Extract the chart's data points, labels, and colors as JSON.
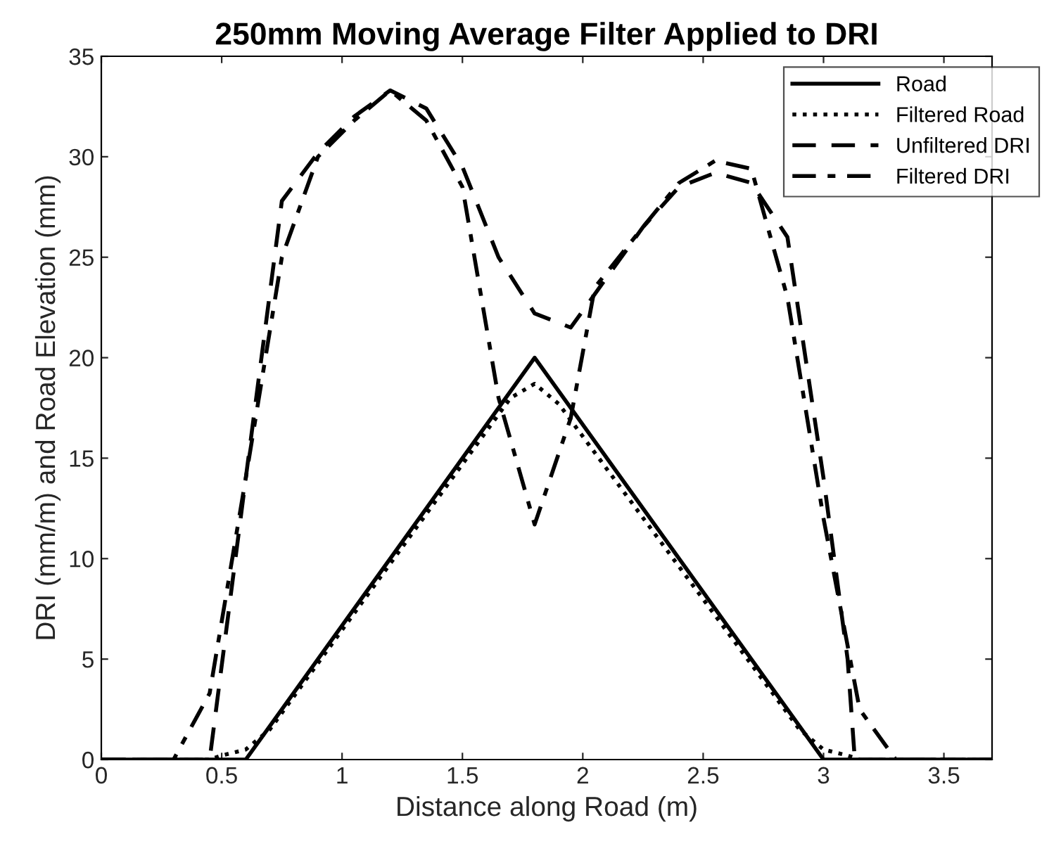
{
  "chart_data": {
    "type": "line",
    "title": "250mm Moving Average Filter Applied to DRI",
    "xlabel": "Distance along Road (m)",
    "ylabel": "DRI (mm/m) and Road Elevation (mm)",
    "xlim": [
      0,
      3.7
    ],
    "ylim": [
      0,
      35
    ],
    "xticks": [
      0,
      0.5,
      1,
      1.5,
      2,
      2.5,
      3,
      3.5
    ],
    "yticks": [
      0,
      5,
      10,
      15,
      20,
      25,
      30,
      35
    ],
    "grid": false,
    "legend": "top right",
    "series": [
      {
        "name": "Road",
        "color": "#000000",
        "line_style": "solid",
        "x": [
          0,
          0.6,
          1.8,
          3.0,
          3.7
        ],
        "values": [
          0,
          0,
          20,
          0,
          0
        ]
      },
      {
        "name": "Filtered Road",
        "color": "#000000",
        "line_style": "dotted",
        "x": [
          0,
          0.45,
          0.5,
          0.6,
          0.7,
          1.7,
          1.8,
          1.9,
          2.9,
          3.0,
          3.1,
          3.15,
          3.7
        ],
        "values": [
          0,
          0,
          0.2,
          0.5,
          1.5,
          18,
          18.7,
          17.7,
          1.5,
          0.5,
          0.2,
          0,
          0
        ]
      },
      {
        "name": "Unfiltered DRI",
        "color": "#000000",
        "line_style": "dashed",
        "x": [
          0,
          0.45,
          0.6,
          0.75,
          0.9,
          1.05,
          1.2,
          1.35,
          1.5,
          1.65,
          1.8,
          1.95,
          2.1,
          2.25,
          2.4,
          2.55,
          2.7,
          2.85,
          3.0,
          3.1,
          3.13,
          3.7
        ],
        "values": [
          0,
          0,
          14,
          27.8,
          30.2,
          32,
          33.3,
          32.4,
          29.5,
          25,
          22.2,
          21.5,
          24,
          26.5,
          28.5,
          29.2,
          28.7,
          26,
          14,
          5,
          0,
          0
        ]
      },
      {
        "name": "Filtered DRI",
        "color": "#000000",
        "line_style": "dashdot",
        "x": [
          0,
          0.3,
          0.45,
          0.6,
          0.75,
          0.9,
          1.05,
          1.2,
          1.35,
          1.5,
          1.65,
          1.8,
          1.95,
          2.05,
          2.25,
          2.4,
          2.55,
          2.7,
          2.85,
          3.0,
          3.15,
          3.3,
          3.7
        ],
        "values": [
          0,
          0,
          3.3,
          14,
          25,
          30,
          31.8,
          33.3,
          31.8,
          28.5,
          18,
          11.7,
          17,
          23.5,
          26.5,
          28.7,
          29.8,
          29.4,
          23,
          12,
          2.5,
          0,
          0
        ]
      }
    ]
  }
}
